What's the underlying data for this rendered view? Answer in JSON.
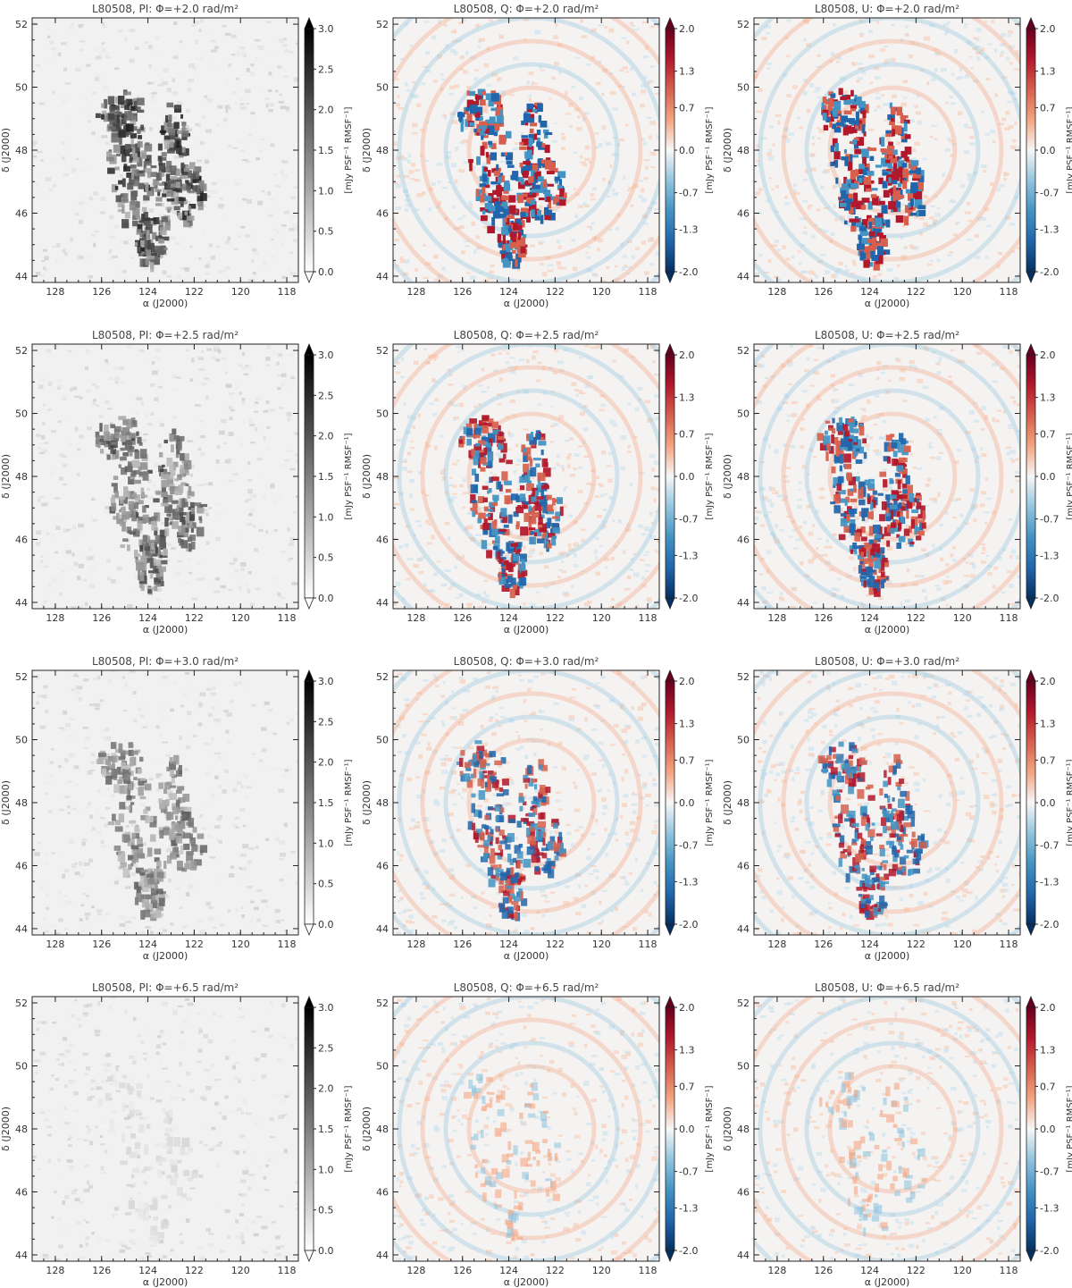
{
  "figure": {
    "colors": {
      "frame": "#222222",
      "pi_cmap": [
        "#ffffff",
        "#000000"
      ],
      "qu_cmap": [
        "#053061",
        "#2166ac",
        "#4393c3",
        "#92c5de",
        "#f7f7f7",
        "#f4a582",
        "#d6604d",
        "#b2182b",
        "#67001f"
      ]
    },
    "axes": {
      "xlabel": "α (J2000)",
      "ylabel": "δ (J2000)",
      "xlim": [
        129,
        117.5
      ],
      "ylim": [
        43.8,
        52.2
      ],
      "xticks": [
        "128",
        "126",
        "124",
        "122",
        "120",
        "118"
      ],
      "yticks": [
        "44",
        "46",
        "48",
        "50",
        "52"
      ]
    },
    "colorbars": {
      "PI": {
        "label": "[mJy PSF⁻¹ RMSF⁻¹]",
        "range": [
          0.0,
          3.0
        ],
        "ticks": [
          "0.0",
          "0.5",
          "1.0",
          "1.5",
          "2.0",
          "2.5",
          "3.0"
        ],
        "extend": "both",
        "cmap": "gray_r"
      },
      "QU": {
        "label": "[mJy PSF⁻¹ RMSF⁻¹]",
        "range": [
          -2.0,
          2.0
        ],
        "ticks": [
          "-2.0",
          "-1.3",
          "-0.7",
          "0.0",
          "0.7",
          "1.3",
          "2.0"
        ],
        "extend": "both",
        "cmap": "RdBu_r"
      }
    },
    "panels": [
      {
        "row": 0,
        "col": 0,
        "kind": "PI",
        "title": "L80508, PI: Φ=+2.0 rad/m²"
      },
      {
        "row": 0,
        "col": 1,
        "kind": "QU",
        "title": "L80508, Q: Φ=+2.0 rad/m²"
      },
      {
        "row": 0,
        "col": 2,
        "kind": "QU",
        "title": "L80508, U: Φ=+2.0 rad/m²"
      },
      {
        "row": 1,
        "col": 0,
        "kind": "PI",
        "title": "L80508, PI: Φ=+2.5 rad/m²"
      },
      {
        "row": 1,
        "col": 1,
        "kind": "QU",
        "title": "L80508, Q: Φ=+2.5 rad/m²"
      },
      {
        "row": 1,
        "col": 2,
        "kind": "QU",
        "title": "L80508, U: Φ=+2.5 rad/m²"
      },
      {
        "row": 2,
        "col": 0,
        "kind": "PI",
        "title": "L80508, PI: Φ=+3.0 rad/m²"
      },
      {
        "row": 2,
        "col": 1,
        "kind": "QU",
        "title": "L80508, Q: Φ=+3.0 rad/m²"
      },
      {
        "row": 2,
        "col": 2,
        "kind": "QU",
        "title": "L80508, U: Φ=+3.0 rad/m²"
      },
      {
        "row": 3,
        "col": 0,
        "kind": "PI",
        "title": "L80508, PI: Φ=+6.5 rad/m²"
      },
      {
        "row": 3,
        "col": 1,
        "kind": "QU",
        "title": "L80508, Q: Φ=+6.5 rad/m²"
      },
      {
        "row": 3,
        "col": 2,
        "kind": "QU",
        "title": "L80508, U: Φ=+6.5 rad/m²"
      }
    ]
  }
}
